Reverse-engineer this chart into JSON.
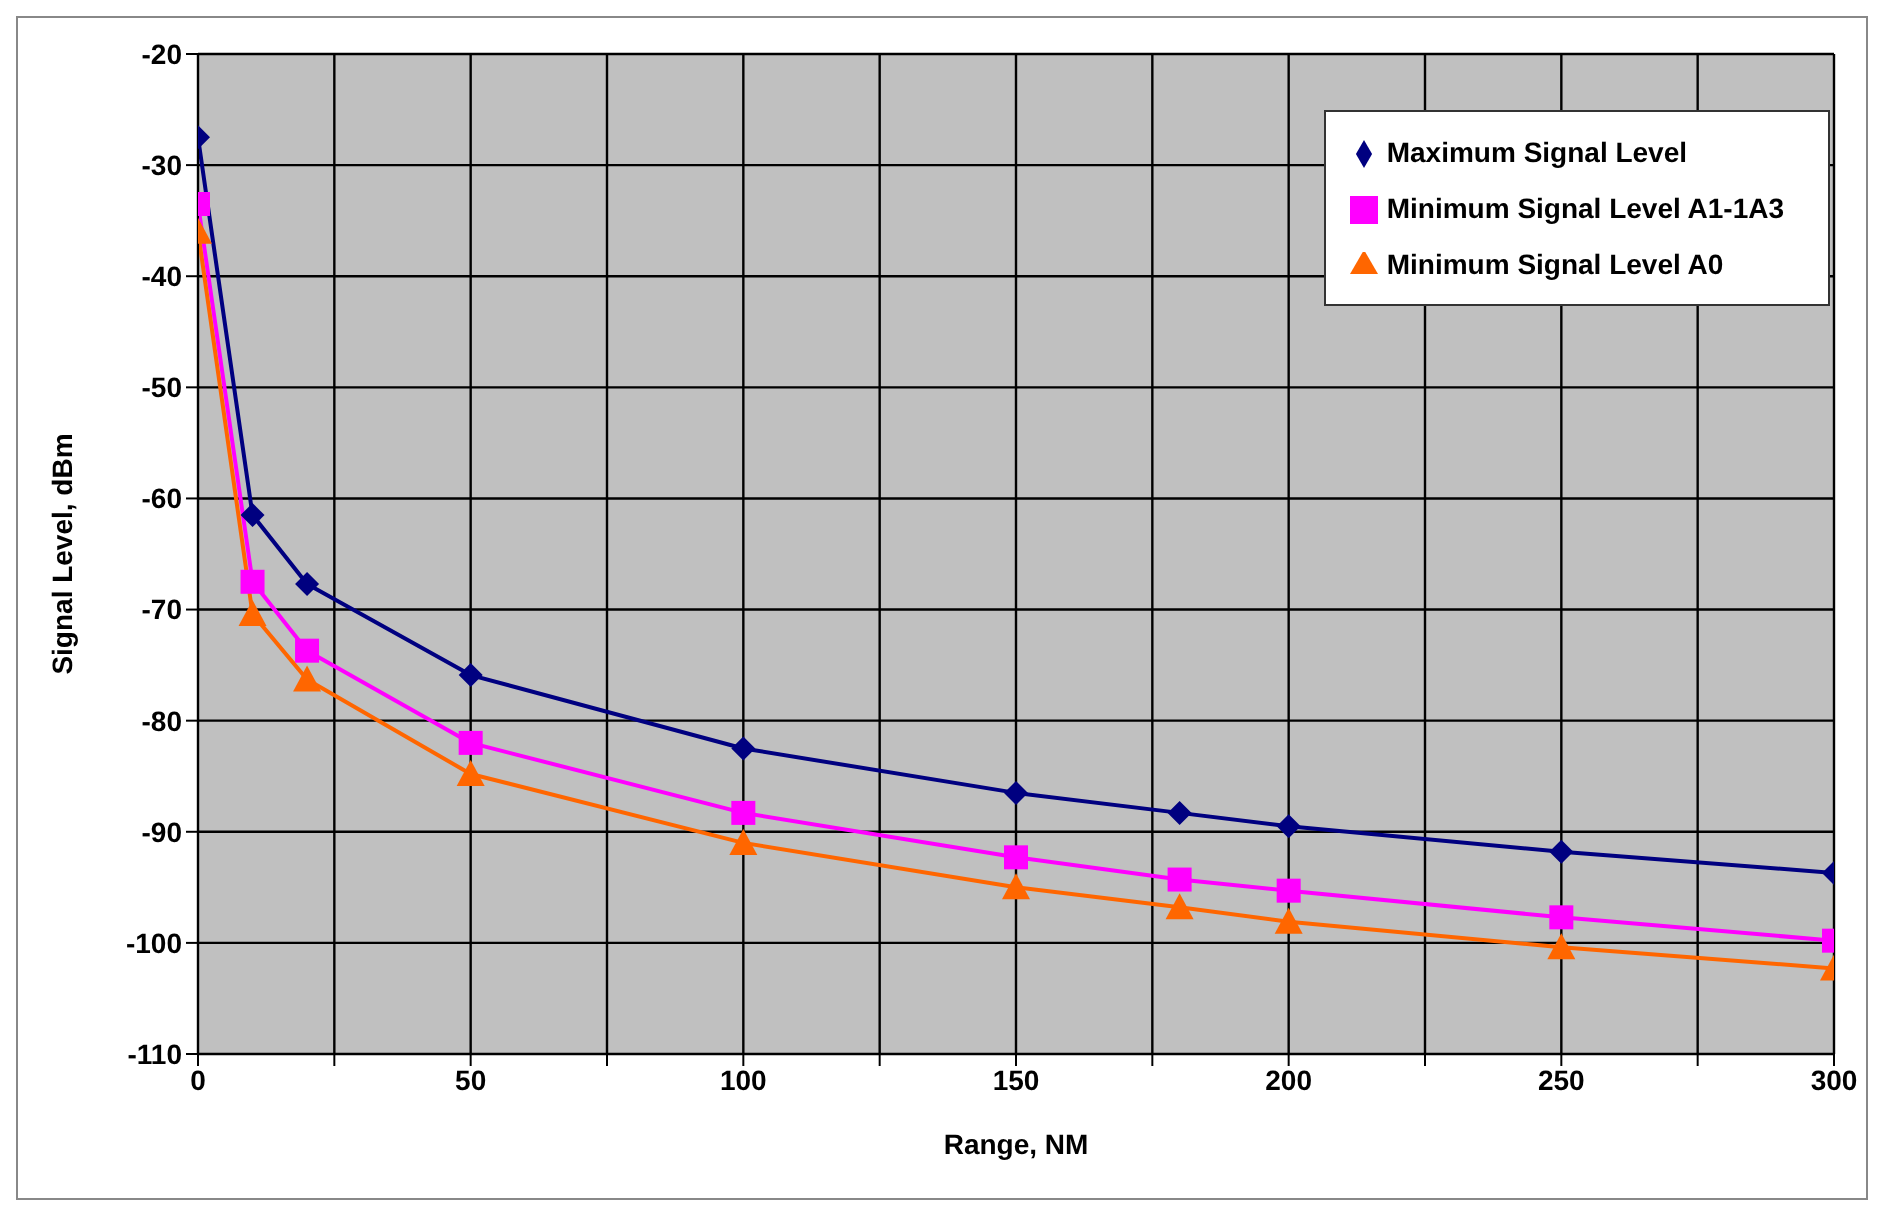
{
  "chart_data": {
    "type": "line",
    "xlabel": "Range, NM",
    "ylabel": "Signal Level, dBm",
    "x": [
      0,
      10,
      20,
      50,
      100,
      150,
      180,
      200,
      250,
      300
    ],
    "series": [
      {
        "name": "Maximum Signal Level",
        "color": "#000080",
        "marker": "diamond",
        "values": [
          -27.5,
          -61.5,
          -67.7,
          -75.9,
          -82.5,
          -86.5,
          -88.3,
          -89.5,
          -91.8,
          -93.7
        ]
      },
      {
        "name": "Minimum Signal Level A1-1A3",
        "color": "#ff00ff",
        "marker": "square",
        "values": [
          -33.5,
          -67.5,
          -73.7,
          -82.0,
          -88.3,
          -92.3,
          -94.3,
          -95.3,
          -97.7,
          -99.8
        ]
      },
      {
        "name": "Minimum Signal Level A0",
        "color": "#ff6600",
        "marker": "triangle",
        "values": [
          -36.0,
          -70.4,
          -76.3,
          -84.8,
          -91.0,
          -95.0,
          -96.8,
          -98.1,
          -100.4,
          -102.3
        ]
      }
    ],
    "xlim": [
      0,
      300
    ],
    "xticks": [
      0,
      {
        "value": 25,
        "label": null
      },
      50,
      {
        "value": 75,
        "label": null
      },
      100,
      {
        "value": 125,
        "label": null
      },
      150,
      {
        "value": 175,
        "label": null
      },
      200,
      {
        "value": 225,
        "label": null
      },
      250,
      {
        "value": 275,
        "label": null
      },
      300
    ],
    "ylim": [
      -110,
      -20
    ],
    "yticks": [
      -110,
      -100,
      -90,
      -80,
      -70,
      -60,
      -50,
      -40,
      -30,
      -20
    ],
    "grid": true,
    "legend": "top right",
    "line_style": "solid"
  }
}
